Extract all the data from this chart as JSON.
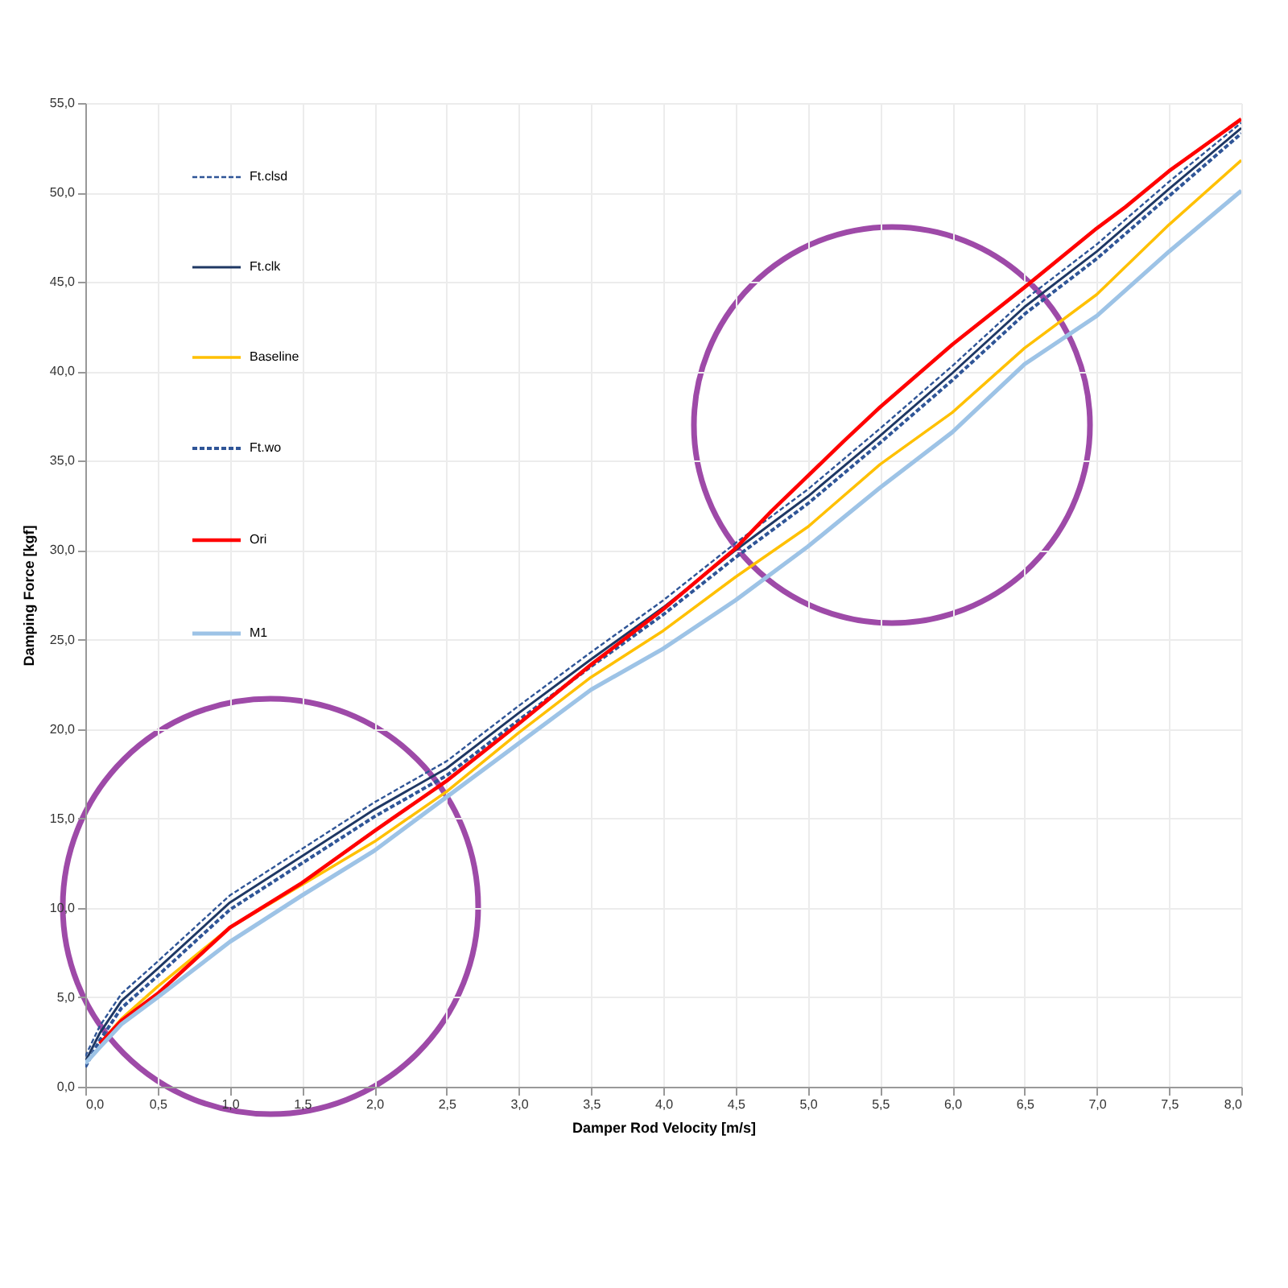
{
  "chart_data": {
    "type": "line",
    "xlabel": "Damper Rod Velocity [m/s]",
    "ylabel": "Damping Force [kgf]",
    "x": [
      0,
      0.1,
      0.25,
      0.5,
      1,
      1.5,
      2,
      2.5,
      3,
      3.5,
      4,
      4.5,
      5,
      5.5,
      6,
      6.5,
      7,
      7.5,
      8
    ],
    "series": [
      {
        "name": "Ft.clsd",
        "color": "#2f5597",
        "line_style": "dashed",
        "values": [
          1.7,
          3.4,
          5.2,
          7.0,
          10.7,
          13.3,
          15.9,
          18.2,
          21.3,
          24.3,
          27.2,
          30.4,
          33.4,
          36.8,
          40.3,
          44.0,
          47.1,
          50.6,
          53.9
        ]
      },
      {
        "name": "Ft.clk",
        "color": "#1f3864",
        "values": [
          1.4,
          3.0,
          4.8,
          6.6,
          10.3,
          12.9,
          15.5,
          17.8,
          20.9,
          23.9,
          26.8,
          30.0,
          33.0,
          36.4,
          39.9,
          43.6,
          46.7,
          50.2,
          53.6
        ]
      },
      {
        "name": "Baseline",
        "color": "#ffc000",
        "values": [
          null,
          2.4,
          3.8,
          5.6,
          8.9,
          11.3,
          13.7,
          16.5,
          19.8,
          22.9,
          25.5,
          28.5,
          31.3,
          34.8,
          37.7,
          41.3,
          44.3,
          48.2,
          51.8
        ]
      },
      {
        "name": "Ft.wo",
        "color": "#2f5597",
        "line_style": "dashed",
        "values": [
          1.1,
          2.6,
          4.4,
          6.2,
          9.9,
          12.5,
          15.1,
          17.4,
          20.5,
          23.5,
          26.4,
          29.6,
          32.6,
          36.0,
          39.5,
          43.2,
          46.3,
          49.8,
          53.3
        ]
      },
      {
        "name": "Ori",
        "color": "#ff0000",
        "x": [
          0.1,
          0.25,
          0.5,
          1,
          1.5,
          2,
          2.5,
          3,
          3.5,
          4,
          4.5,
          4.75,
          5.25,
          5.5,
          6,
          6.5,
          7,
          7.2,
          7.5,
          8
        ],
        "values": [
          2.4,
          3.7,
          5.2,
          8.9,
          11.4,
          14.3,
          17.1,
          20.3,
          23.6,
          26.7,
          30.1,
          32.2,
          36.1,
          38.0,
          41.5,
          44.7,
          48.0,
          49.2,
          51.2,
          54.1
        ]
      },
      {
        "name": "M1",
        "color": "#9dc3e6",
        "values": [
          1.3,
          2.2,
          3.5,
          5.0,
          8.1,
          10.7,
          13.2,
          16.2,
          19.2,
          22.2,
          24.5,
          27.2,
          30.2,
          33.5,
          36.6,
          40.4,
          43.1,
          46.7,
          50.1
        ]
      }
    ],
    "xlim": [
      0,
      8
    ],
    "xticks": [
      {
        "value": 0,
        "label": "0,0"
      },
      {
        "value": 0.5,
        "label": "0,5"
      },
      {
        "value": 1,
        "label": "1,0"
      },
      {
        "value": 1.5,
        "label": "1,5"
      },
      {
        "value": 2,
        "label": "2,0"
      },
      {
        "value": 2.5,
        "label": "2,5"
      },
      {
        "value": 3,
        "label": "3,0"
      },
      {
        "value": 3.5,
        "label": "3,5"
      },
      {
        "value": 4,
        "label": "4,0"
      },
      {
        "value": 4.5,
        "label": "4,5"
      },
      {
        "value": 5,
        "label": "5,0"
      },
      {
        "value": 5.5,
        "label": "5,5"
      },
      {
        "value": 6,
        "label": "6,0"
      },
      {
        "value": 6.5,
        "label": "6,5"
      },
      {
        "value": 7,
        "label": "7,0"
      },
      {
        "value": 7.5,
        "label": "7,5"
      },
      {
        "value": 8,
        "label": "8,0"
      }
    ],
    "ylim": [
      0,
      55
    ],
    "yticks": [
      {
        "value": 0,
        "label": "0,0"
      },
      {
        "value": 5,
        "label": "5,0"
      },
      {
        "value": 10,
        "label": "10,0"
      },
      {
        "value": 15,
        "label": "15,0"
      },
      {
        "value": 20,
        "label": "20,0"
      },
      {
        "value": 25,
        "label": "25,0"
      },
      {
        "value": 30,
        "label": "30,0"
      },
      {
        "value": 35,
        "label": "35,0"
      },
      {
        "value": 40,
        "label": "40,0"
      },
      {
        "value": 45,
        "label": "45,0"
      },
      {
        "value": 50,
        "label": "50,0"
      },
      {
        "value": 55,
        "label": "55,0"
      }
    ],
    "grid": true,
    "legend": "top left"
  }
}
